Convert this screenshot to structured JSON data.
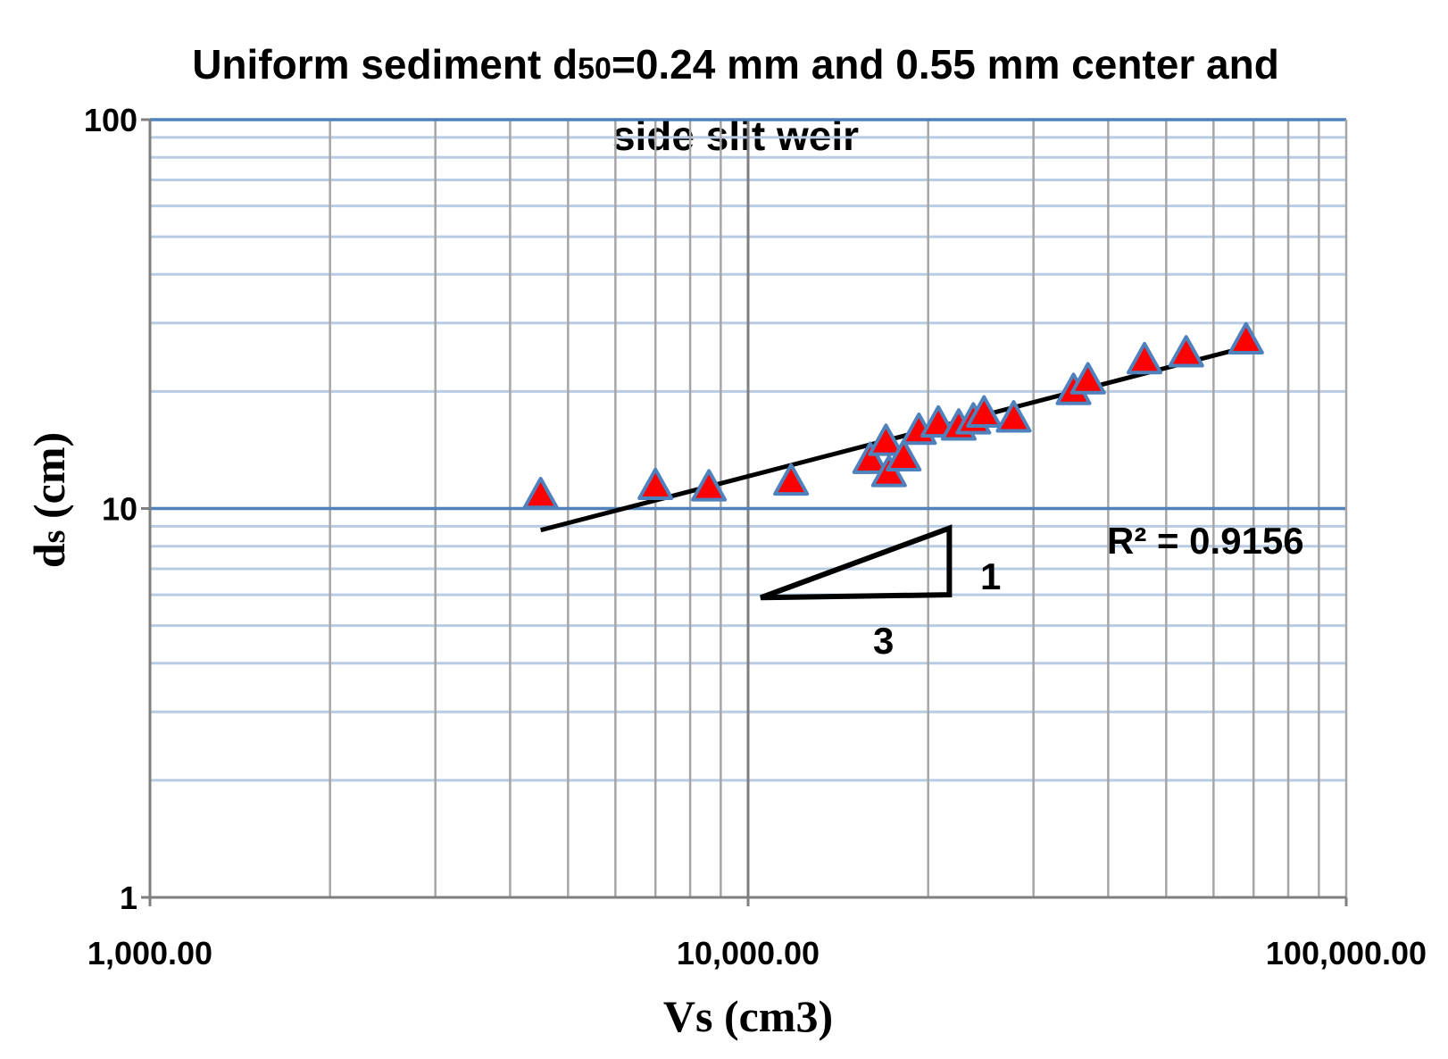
{
  "chart_data": {
    "type": "scatter",
    "title_line1_pre": "Uniform sediment  d",
    "title_line1_sub": "50",
    "title_line1_post": "=0.24 mm and 0.55 mm center and",
    "title_line2": "side slit weir",
    "xlabel": "Vs (cm3)",
    "ylabel_main": "d",
    "ylabel_sub": "s",
    "ylabel_rest": " (cm)",
    "xscale": "log",
    "yscale": "log",
    "xlim": [
      1000,
      100000
    ],
    "ylim": [
      1,
      100
    ],
    "x_tick_labels": [
      "1,000.00",
      "10,000.00",
      "100,000.00"
    ],
    "y_tick_labels": [
      "100",
      "10",
      "1"
    ],
    "grid": true,
    "marker": "triangle",
    "marker_color": "#ff0000",
    "marker_edge_color": "#4f81bd",
    "trendline_color": "#000000",
    "points": [
      {
        "x": 4500,
        "y": 10.8
      },
      {
        "x": 7000,
        "y": 11.4
      },
      {
        "x": 8600,
        "y": 11.3
      },
      {
        "x": 11800,
        "y": 11.7
      },
      {
        "x": 16000,
        "y": 13.3
      },
      {
        "x": 17000,
        "y": 14.8
      },
      {
        "x": 17200,
        "y": 12.3
      },
      {
        "x": 18200,
        "y": 13.5
      },
      {
        "x": 19300,
        "y": 15.8
      },
      {
        "x": 20800,
        "y": 16.5
      },
      {
        "x": 22500,
        "y": 16.2
      },
      {
        "x": 23800,
        "y": 16.8
      },
      {
        "x": 24800,
        "y": 17.5
      },
      {
        "x": 27800,
        "y": 17.0
      },
      {
        "x": 35000,
        "y": 20.0
      },
      {
        "x": 37000,
        "y": 21.3
      },
      {
        "x": 46000,
        "y": 24.0
      },
      {
        "x": 54000,
        "y": 25.0
      },
      {
        "x": 68000,
        "y": 27.0
      }
    ],
    "trendline": {
      "x_start": 4500,
      "y_start": 8.8,
      "x_end": 68000,
      "y_end": 26.0
    },
    "r_squared_label": "R² = 0.9156",
    "slope_triangle": {
      "vertices": [
        [
          10500,
          5.9
        ],
        [
          21700,
          6.0
        ],
        [
          21700,
          8.9
        ]
      ],
      "rise_label": "1",
      "run_label": "3"
    }
  }
}
